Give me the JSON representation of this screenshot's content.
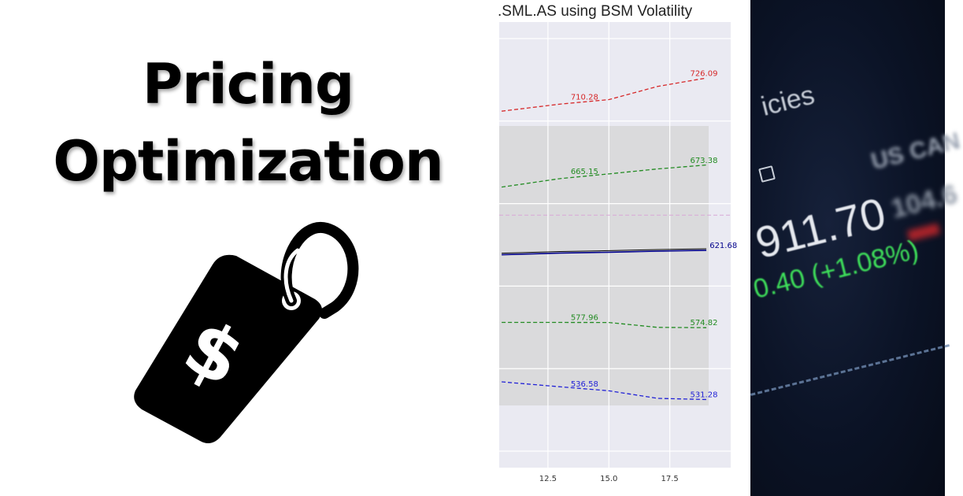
{
  "left": {
    "headline_line_1": "Pricing",
    "headline_line_2": "Optimization",
    "tag_symbol": "$"
  },
  "chart_data": {
    "type": "line",
    "title": "...SML.AS using BSM Volatility",
    "title_visible": ".SML.AS using BSM Volatility",
    "x_ticks": [
      "12.5",
      "15.0",
      "17.5"
    ],
    "xlim": [
      10.5,
      20.0
    ],
    "ylim": [
      490,
      760
    ],
    "grid": true,
    "series": [
      {
        "color": "#d62728",
        "x": [
          10.6,
          13.0,
          15.0,
          17.0,
          19.0
        ],
        "values": [
          706,
          710.28,
          713,
          721,
          726.09
        ],
        "labels": [
          {
            "x": 14.0,
            "text": "710.28"
          },
          {
            "x": 18.9,
            "text": "726.09"
          }
        ]
      },
      {
        "color": "#228b22",
        "x": [
          10.6,
          13.0,
          15.0,
          17.0,
          19.0
        ],
        "values": [
          660,
          665.15,
          668,
          671,
          673.38
        ],
        "labels": [
          {
            "x": 14.0,
            "text": "665.15"
          },
          {
            "x": 18.9,
            "text": "673.38"
          }
        ]
      },
      {
        "color": "#00008b",
        "solid": true,
        "x": [
          10.6,
          13.0,
          15.0,
          17.0,
          19.0
        ],
        "values": [
          619,
          620,
          620.5,
          621.2,
          621.68
        ],
        "labels": [
          {
            "x": 19.7,
            "text": "621.68"
          }
        ]
      },
      {
        "color": "#228b22",
        "x": [
          10.6,
          13.0,
          15.0,
          17.0,
          19.0
        ],
        "values": [
          578,
          578,
          577.96,
          575,
          574.82
        ],
        "labels": [
          {
            "x": 14.0,
            "text": "577.96"
          },
          {
            "x": 18.9,
            "text": "574.82"
          }
        ]
      },
      {
        "color": "#1f1fd6",
        "x": [
          10.6,
          13.0,
          15.0,
          17.0,
          19.0
        ],
        "values": [
          542,
          539,
          536.58,
          532,
          531.28
        ],
        "labels": [
          {
            "x": 14.0,
            "text": "536.58"
          },
          {
            "x": 18.9,
            "text": "531.28"
          }
        ]
      }
    ],
    "reference_line": {
      "color": "#d8a7d6",
      "value": 643
    }
  },
  "photo": {
    "word_fragment": "icies",
    "code_fragment": "US CAN",
    "price": "911.70",
    "number_fragment": "104.6",
    "change": "0.40 (+1.08%)"
  }
}
